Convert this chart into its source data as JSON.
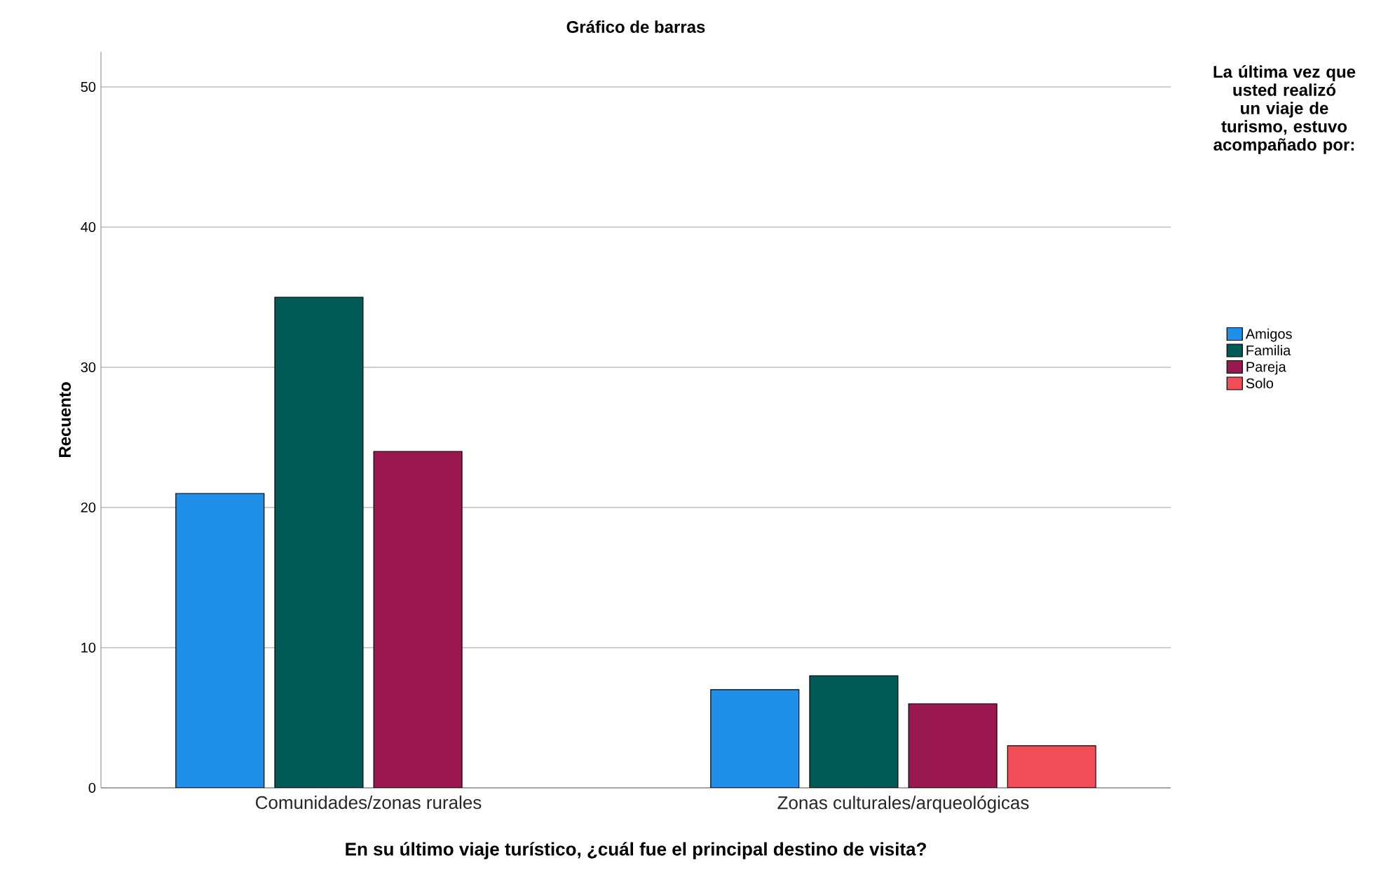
{
  "chart_data": {
    "type": "bar",
    "title": "Gráfico de barras",
    "xlabel": "En su último viaje turístico, ¿cuál fue el principal destino de visita?",
    "ylabel": "Recuento",
    "legend_title": "La última vez que usted realizó un viaje de turismo, estuvo acompañado por:",
    "categories": [
      "Comunidades/zonas rurales",
      "Zonas culturales/arqueológicas"
    ],
    "series": [
      {
        "name": "Amigos",
        "color": "#1f8fe8",
        "values": [
          21,
          7
        ]
      },
      {
        "name": "Familia",
        "color": "#005a55",
        "values": [
          35,
          8
        ]
      },
      {
        "name": "Pareja",
        "color": "#9b1750",
        "values": [
          24,
          6
        ]
      },
      {
        "name": "Solo",
        "color": "#f24e5a",
        "values": [
          null,
          3
        ]
      }
    ],
    "ylim": [
      0,
      52.5
    ],
    "yticks": [
      0,
      10,
      20,
      30,
      40,
      50
    ],
    "grid": "y",
    "legend": "right"
  }
}
